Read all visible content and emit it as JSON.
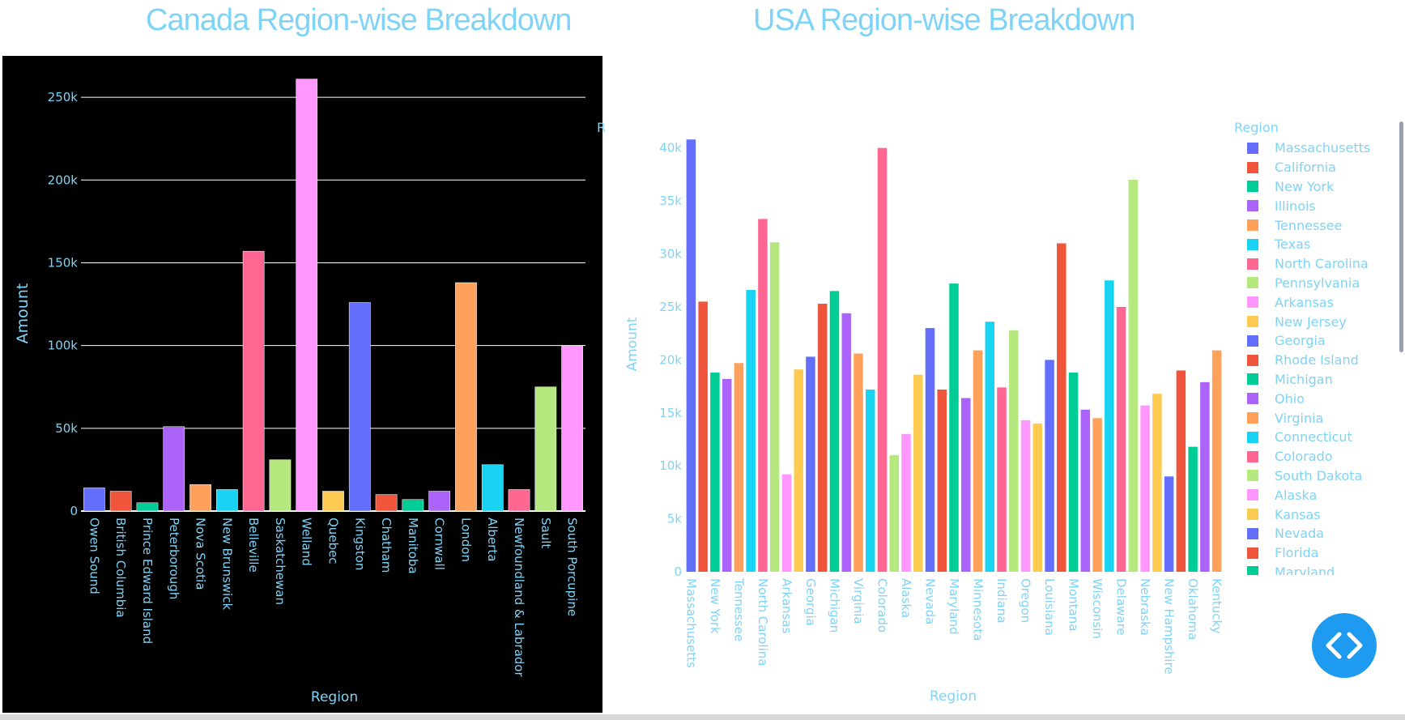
{
  "chart_data": [
    {
      "type": "bar",
      "title": "Canada Region-wise Breakdown",
      "xlabel": "Region",
      "ylabel": "Amount",
      "ylim": [
        0,
        275000
      ],
      "yticks": [
        0,
        50000,
        100000,
        150000,
        200000,
        250000
      ],
      "ytick_labels": [
        "0",
        "50k",
        "100k",
        "150k",
        "200k",
        "250k"
      ],
      "grid": true,
      "background": "#000000",
      "categories": [
        "Owen Sound",
        "British Columbia",
        "Prince Edward Island",
        "Peterborough",
        "Nova Scotia",
        "New Brunswick",
        "Belleville",
        "Saskatchewan",
        "Welland",
        "Quebec",
        "Kingston",
        "Chatham",
        "Manitoba",
        "Cornwall",
        "London",
        "Alberta",
        "Newfoundland & Labrador",
        "Sault",
        "South Porcupine"
      ],
      "values": [
        14000,
        12000,
        5000,
        51000,
        16000,
        13000,
        157000,
        31000,
        261000,
        12000,
        126000,
        10000,
        7000,
        12000,
        138000,
        28000,
        13000,
        75000,
        100000
      ],
      "colors": [
        "#636efa",
        "#ef553b",
        "#00cc96",
        "#ab63fa",
        "#ffa15a",
        "#19d3f3",
        "#ff6692",
        "#b6e880",
        "#ff97ff",
        "#fecb52",
        "#636efa",
        "#ef553b",
        "#00cc96",
        "#ab63fa",
        "#ffa15a",
        "#19d3f3",
        "#ff6692",
        "#b6e880",
        "#ff97ff"
      ]
    },
    {
      "type": "bar",
      "title": "USA Region-wise Breakdown",
      "xlabel": "Region",
      "ylabel": "Amount",
      "ylim": [
        0,
        42500
      ],
      "yticks": [
        0,
        5000,
        10000,
        15000,
        20000,
        25000,
        30000,
        35000,
        40000
      ],
      "ytick_labels": [
        "0",
        "5k",
        "10k",
        "15k",
        "20k",
        "25k",
        "30k",
        "35k",
        "40k"
      ],
      "grid": false,
      "legend_title": "Region",
      "legend_placement": "right",
      "tick_categories": [
        "Massachusetts",
        "New York",
        "Tennessee",
        "North Carolina",
        "Arkansas",
        "Georgia",
        "Michigan",
        "Virginia",
        "Colorado",
        "Alaska",
        "Nevada",
        "Maryland",
        "Minnesota",
        "Indiana",
        "Oregon",
        "Louisiana",
        "Montana",
        "Wisconsin",
        "Delaware",
        "Nebraska",
        "New Hampshire",
        "Oklahoma",
        "Kentucky"
      ],
      "values": [
        40800,
        25500,
        18800,
        18200,
        19700,
        26600,
        33300,
        31100,
        9200,
        19100,
        20300,
        25300,
        26500,
        24400,
        20600,
        17200,
        40000,
        11000,
        13000,
        18600,
        23000,
        17200,
        27200,
        16400,
        20900,
        23600,
        17400,
        22800,
        14300,
        14000,
        20000,
        31000,
        18800,
        15300,
        14500,
        27500,
        25000,
        37000,
        15700,
        16800,
        9000,
        19000,
        11800,
        17900,
        20900
      ],
      "colors": [
        "#636efa",
        "#ef553b",
        "#00cc96",
        "#ab63fa",
        "#ffa15a",
        "#19d3f3",
        "#ff6692",
        "#b6e880",
        "#ff97ff",
        "#fecb52",
        "#636efa",
        "#ef553b",
        "#00cc96",
        "#ab63fa",
        "#ffa15a",
        "#19d3f3",
        "#ff6692",
        "#b6e880",
        "#ff97ff",
        "#fecb52",
        "#636efa",
        "#ef553b",
        "#00cc96",
        "#ab63fa",
        "#ffa15a",
        "#19d3f3",
        "#ff6692",
        "#b6e880",
        "#ff97ff",
        "#fecb52",
        "#636efa",
        "#ef553b",
        "#00cc96",
        "#ab63fa",
        "#ffa15a",
        "#19d3f3",
        "#ff6692",
        "#b6e880",
        "#ff97ff",
        "#fecb52",
        "#636efa",
        "#ef553b",
        "#00cc96",
        "#ab63fa",
        "#ffa15a"
      ],
      "legend_entries": [
        "Massachusetts",
        "California",
        "New York",
        "Illinois",
        "Tennessee",
        "Texas",
        "North Carolina",
        "Pennsylvania",
        "Arkansas",
        "New Jersey",
        "Georgia",
        "Rhode Island",
        "Michigan",
        "Ohio",
        "Virginia",
        "Connecticut",
        "Colorado",
        "South Dakota",
        "Alaska",
        "Kansas",
        "Nevada",
        "Florida",
        "Maryland"
      ]
    }
  ],
  "ui": {
    "code_button_icon": "code-icon",
    "stray_label": "R"
  }
}
